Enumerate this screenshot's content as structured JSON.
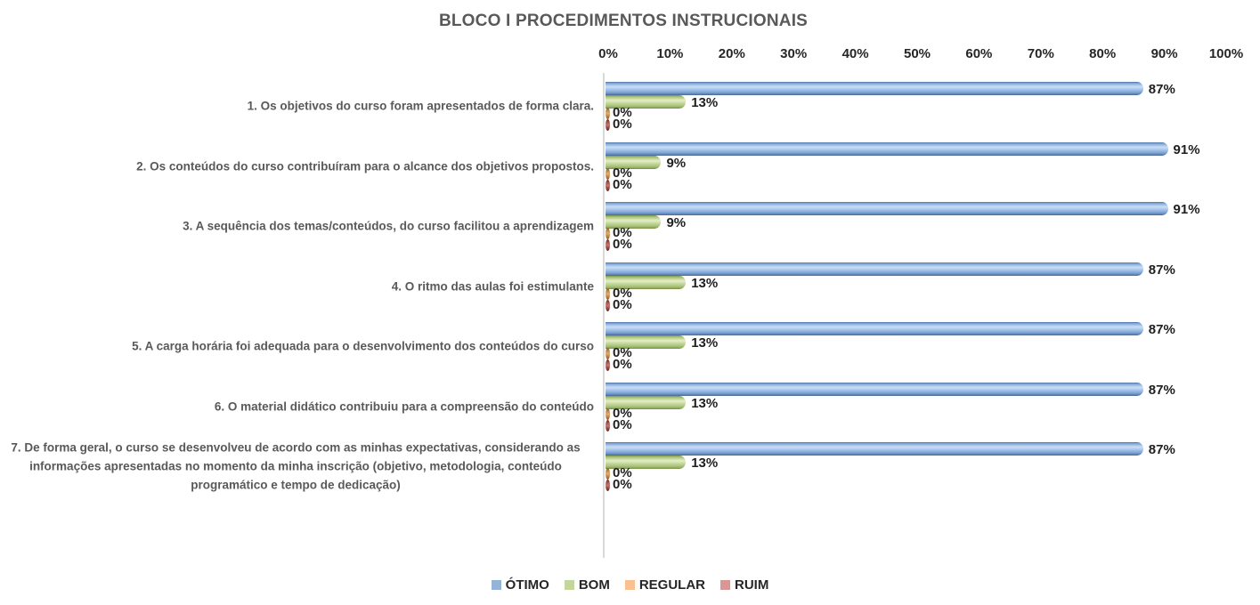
{
  "chart_data": {
    "type": "bar",
    "orientation": "horizontal",
    "title": "BLOCO I PROCEDIMENTOS INSTRUCIONAIS",
    "x_ticks": [
      "0%",
      "10%",
      "20%",
      "30%",
      "40%",
      "50%",
      "60%",
      "70%",
      "80%",
      "90%",
      "100%"
    ],
    "xlim": [
      0,
      100
    ],
    "grid": false,
    "legend_position": "bottom",
    "value_suffix": "%",
    "categories": [
      "1. Os objetivos do curso foram apresentados de forma clara.",
      "2. Os conteúdos do curso contribuíram para o alcance dos objetivos propostos.",
      "3. A sequência dos temas/conteúdos, do curso facilitou a aprendizagem",
      "4. O ritmo das aulas foi estimulante",
      "5. A carga horária foi adequada para o desenvolvimento dos conteúdos do curso",
      "6. O material didático contribuiu para a compreensão do conteúdo",
      "7. De forma geral, o curso se desenvolveu de acordo com as minhas expectativas, considerando as informações apresentadas no momento da minha inscrição (objetivo, metodologia, conteúdo programático e tempo de dedicação)"
    ],
    "series": [
      {
        "name": "ÓTIMO",
        "color": "#95B3D7",
        "values": [
          87,
          91,
          91,
          87,
          87,
          87,
          87
        ]
      },
      {
        "name": "BOM",
        "color": "#C3D69B",
        "values": [
          13,
          9,
          9,
          13,
          13,
          13,
          13
        ]
      },
      {
        "name": "REGULAR",
        "color": "#FAC090",
        "values": [
          0,
          0,
          0,
          0,
          0,
          0,
          0
        ]
      },
      {
        "name": "RUIM",
        "color": "#D99694",
        "values": [
          0,
          0,
          0,
          0,
          0,
          0,
          0
        ]
      }
    ],
    "data_labels": {
      "ÓTIMO": [
        "87%",
        "91%",
        "91%",
        "87%",
        "87%",
        "87%",
        "87%"
      ],
      "BOM": [
        "13%",
        "9%",
        "9%",
        "13%",
        "13%",
        "13%",
        "13%"
      ],
      "REGULAR": [
        "0%",
        "0%",
        "0%",
        "0%",
        "0%",
        "0%",
        "0%"
      ],
      "RUIM": [
        "0%",
        "0%",
        "0%",
        "0%",
        "0%",
        "0%",
        "0%"
      ]
    },
    "colors": {
      "title_text": "#595959",
      "category_text": "#595959",
      "tick_text": "#262626",
      "value_text": "#1f1f1f",
      "axis_line": "#d9d9d9"
    }
  }
}
